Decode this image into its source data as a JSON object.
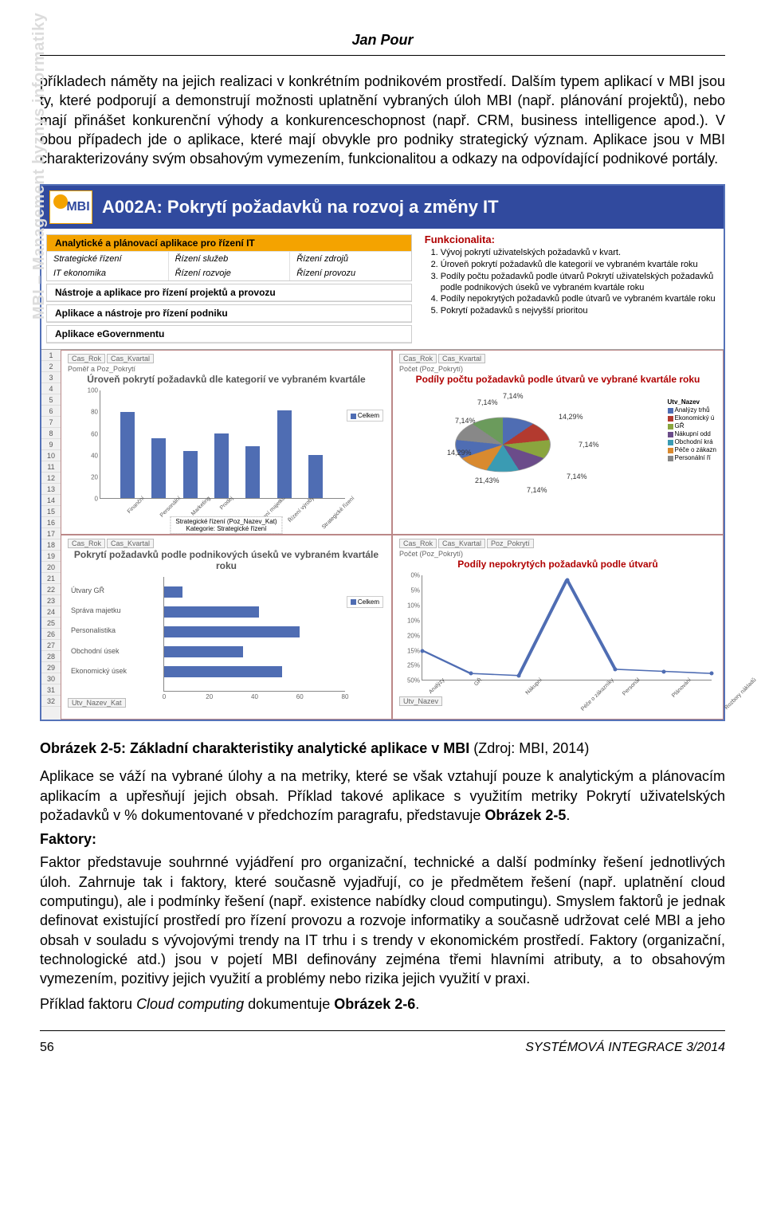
{
  "author": "Jan Pour",
  "paragraphs": {
    "p1": "příkladech náměty na jejich realizaci v konkrétním podnikovém prostředí. Dalším typem aplikací v MBI jsou ty, které podporují a demonstrují možnosti uplatnění vybraných úloh MBI (např. plánování projektů), nebo mají přinášet konkurenční výhody a konkurenceschopnost (např. CRM, business intelligence apod.). V obou případech jde o aplikace, které mají obvykle pro podniky strategický význam. Aplikace jsou v MBI charakterizovány svým obsahovým vymezením, funkcionalitou a odkazy na odpovídající podnikové portály.",
    "p2_prefix": "Aplikace se váží na vybrané úlohy a na metriky, které se však vztahují pouze k analytickým a plánovacím aplikacím a upřesňují jejich obsah. Příklad takové aplikace s využitím metriky Pokrytí uživatelských požadavků v % dokumentované v předchozím paragrafu, představuje ",
    "p2_ref": "Obrázek 2-5",
    "p2_suffix": ".",
    "faktory_label": "Faktory:",
    "p3": "Faktor představuje souhrnné vyjádření pro organizační, technické a další podmínky řešení jednotlivých úloh. Zahrnuje tak i faktory, které současně vyjadřují, co je předmětem řešení (např. uplatnění cloud computingu), ale i podmínky řešení (např. existence nabídky cloud computingu). Smyslem faktorů je jednak definovat existující prostředí pro řízení provozu a rozvoje informatiky a současně udržovat celé MBI a jeho obsah v souladu s vývojovými trendy na IT trhu i s trendy v ekonomickém prostředí. Faktory (organizační, technologické atd.) jsou v pojetí MBI definovány zejména třemi hlavními atributy, a to obsahovým vymezením, pozitivy jejich využití a problémy nebo rizika jejich využití v praxi.",
    "p4_prefix": "Příklad faktoru ",
    "p4_em": "Cloud computing",
    "p4_mid": " dokumentuje ",
    "p4_ref": "Obrázek 2-6",
    "p4_suffix": "."
  },
  "figure": {
    "watermark": "MBI – Management byznys informatiky",
    "logo_text": "MBI",
    "header": "A002A: Pokrytí požadavků na rozvoj a změny IT",
    "categories": {
      "group1": {
        "title": "Analytické a plánovací aplikace pro řízení IT",
        "row1": [
          "Strategické řízení",
          "Řízení služeb",
          "Řízení zdrojů"
        ],
        "row2": [
          "IT ekonomika",
          "Řízení rozvoje",
          "Řízení provozu"
        ]
      },
      "group2": "Nástroje a aplikace pro řízení projektů a provozu",
      "group3": "Aplikace a nástroje pro řízení podniku",
      "group4": "Aplikace eGovernmentu"
    },
    "func": {
      "title": "Funkcionalita:",
      "items": [
        "Vývoj pokrytí uživatelských požadavků v kvart.",
        "Úroveň pokrytí požadavků dle kategorií ve vybraném kvartále roku",
        "Podíly počtu požadavků podle útvarů Pokrytí uživatelských požadavků podle podnikových úseků ve vybraném kvartále roku",
        "Podíly nepokrytých požadavků podle útvarů ve vybraném kvartále roku",
        "Pokrytí požadavků s nejvyšší prioritou"
      ]
    },
    "rows": 32,
    "charts": {
      "bar1": {
        "crumbs": [
          "Cas_Rok",
          "Cas_Kvartal"
        ],
        "crumb2": "Poměř a Poz_Pokrytí",
        "title": "Úroveň pokrytí požadavků dle kategorií ve vybraném kvartále",
        "ylim": [
          0,
          100
        ],
        "ytick": 20,
        "labels": [
          "Finanční",
          "Personální",
          "Marketing",
          "Prodej",
          "Řízení majetku",
          "Řízení výroby",
          "Strategické řízení"
        ],
        "values": [
          80,
          56,
          44,
          60,
          48,
          82,
          40
        ],
        "bar_color": "#4f6db3",
        "legend": "Celkem",
        "note_l1": "Strategické řízení (Poz_Nazev_Kat)",
        "note_l2": "Kategorie: Strategické řízení"
      },
      "pie": {
        "crumbs": [
          "Cas_Rok",
          "Cas_Kvartal"
        ],
        "crumb2": "Počet (Poz_Pokrytí)",
        "title": "Podíly počtu požadavků podle útvarů ve vybrané kvartále roku",
        "slices": [
          {
            "label": "7,14%",
            "color": "#4f6db3"
          },
          {
            "label": "14,29%",
            "color": "#b33a2f"
          },
          {
            "label": "7,14%",
            "color": "#8aa53e"
          },
          {
            "label": "7,14%",
            "color": "#6b4c8a"
          },
          {
            "label": "7,14%",
            "color": "#3a9bb3"
          },
          {
            "label": "21,43%",
            "color": "#d98a2f"
          },
          {
            "label": "14,29%",
            "color": "#4f6db3"
          },
          {
            "label": "7,14%",
            "color": "#888888"
          },
          {
            "label": "7,14%",
            "color": "#6b9b5c"
          }
        ],
        "legend": [
          {
            "label": "Utv_Nazev",
            "color": ""
          },
          {
            "label": "Analýzy trhů",
            "color": "#4f6db3"
          },
          {
            "label": "Ekonomický ú",
            "color": "#b33a2f"
          },
          {
            "label": "GŘ",
            "color": "#8aa53e"
          },
          {
            "label": "Nákupní odd",
            "color": "#6b4c8a"
          },
          {
            "label": "Obchodní krá",
            "color": "#3a9bb3"
          },
          {
            "label": "Péče o zákazn",
            "color": "#d98a2f"
          },
          {
            "label": "Personální ří",
            "color": "#888888"
          }
        ]
      },
      "bar2": {
        "crumbs": [
          "Cas_Rok",
          "Cas_Kvartal"
        ],
        "crumb2b": "Utv_Nazev_Kat",
        "title": "Pokrytí požadavků podle podnikových úseků ve vybraném kvartále roku",
        "labels": [
          "Útvary GŘ",
          "Správa majetku",
          "Personalistika",
          "Obchodní úsek",
          "Ekonomický úsek"
        ],
        "values": [
          8,
          42,
          60,
          35,
          52
        ],
        "bar_color": "#4f6db3",
        "legend": "Celkem"
      },
      "line": {
        "crumbs": [
          "Cas_Rok",
          "Cas_Kvartal",
          "Poz_Pokrytí"
        ],
        "crumb2": "Počet (Poz_Pokrytí)",
        "crumb2b": "Utv_Nazev",
        "title": "Podíly nepokrytých požadavků podle útvarů",
        "ylabels": [
          "50%",
          "25%",
          "15%",
          "20%",
          "10%",
          "10%",
          "5%",
          "0%"
        ],
        "xlabels": [
          "Analýzy",
          "GŘ",
          "Nákupní",
          "Péče o zákazníky",
          "Personál",
          "Plánování",
          "Rozbory nákladů"
        ],
        "points": [
          14,
          3,
          2,
          48,
          5,
          4,
          3
        ],
        "line_color": "#4f6db3"
      }
    }
  },
  "caption": {
    "bold": "Obrázek 2-5: Základní charakteristiky analytické aplikace v MBI",
    "rest": " (Zdroj: MBI, 2014)"
  },
  "footer": {
    "page": "56",
    "journal": "SYSTÉMOVÁ INTEGRACE 3/2014"
  }
}
